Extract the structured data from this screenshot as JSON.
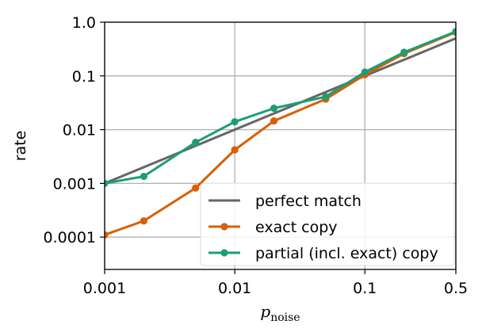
{
  "chart_data": {
    "type": "line",
    "xscale": "log",
    "yscale": "log",
    "xlim": [
      0.001,
      0.5
    ],
    "ylim": [
      2.5e-05,
      1.0
    ],
    "xticks": [
      0.001,
      0.01,
      0.1,
      0.5
    ],
    "xtick_labels": [
      "0.001",
      "0.01",
      "0.1",
      "0.5"
    ],
    "yticks": [
      0.0001,
      0.001,
      0.01,
      0.1,
      1.0
    ],
    "ytick_labels": [
      "0.0001",
      "0.001",
      "0.01",
      "0.1",
      "1.0"
    ],
    "xlabel": "p",
    "xlabel_sub": "noise",
    "ylabel": "rate",
    "grid": true,
    "legend_position": "lower-right",
    "series": [
      {
        "name": "perfect match",
        "color": "#666666",
        "markers": false,
        "x": [
          0.001,
          0.5
        ],
        "y": [
          0.001,
          0.5
        ]
      },
      {
        "name": "exact copy",
        "color": "#d95f02",
        "markers": true,
        "x": [
          0.001,
          0.002,
          0.005,
          0.01,
          0.02,
          0.05,
          0.1,
          0.2,
          0.5
        ],
        "y": [
          0.00011,
          0.0002,
          0.00082,
          0.0042,
          0.0145,
          0.037,
          0.105,
          0.26,
          0.65
        ]
      },
      {
        "name": "partial (incl. exact) copy",
        "color": "#1b9e77",
        "markers": true,
        "x": [
          0.001,
          0.002,
          0.005,
          0.01,
          0.02,
          0.05,
          0.1,
          0.2,
          0.5
        ],
        "y": [
          0.001,
          0.00135,
          0.0058,
          0.014,
          0.025,
          0.041,
          0.118,
          0.275,
          0.67
        ]
      }
    ]
  }
}
